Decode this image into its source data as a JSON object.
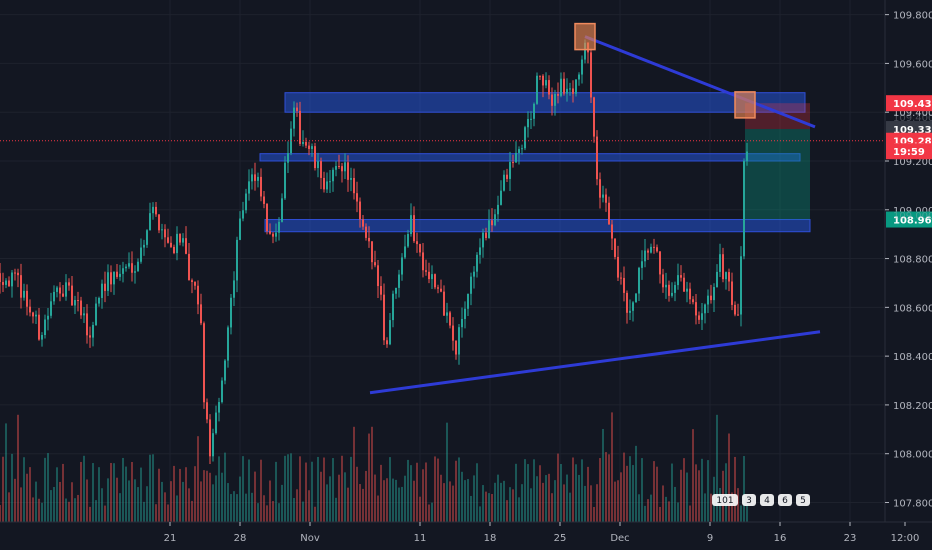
{
  "chart_data": {
    "type": "candlestick",
    "y_range": [
      107.72,
      109.86
    ],
    "y_ticks": [
      {
        "value": 109.8,
        "label": "109.800"
      },
      {
        "value": 109.6,
        "label": "109.600"
      },
      {
        "value": 109.4,
        "label": "109.400"
      },
      {
        "value": 109.2,
        "label": "109.200"
      },
      {
        "value": 109.0,
        "label": "109.000"
      },
      {
        "value": 108.8,
        "label": "108.800"
      },
      {
        "value": 108.6,
        "label": "108.600"
      },
      {
        "value": 108.4,
        "label": "108.400"
      },
      {
        "value": 108.2,
        "label": "108.200"
      },
      {
        "value": 108.0,
        "label": "108.000"
      },
      {
        "value": 107.8,
        "label": "107.800"
      }
    ],
    "x_range": [
      0,
      885
    ],
    "x_ticks": [
      {
        "x": 17,
        "label": "21"
      },
      {
        "x": 24,
        "label": "28"
      },
      {
        "x": 31,
        "label": "Nov"
      },
      {
        "x": 42,
        "label": "11"
      },
      {
        "x": 49,
        "label": "18"
      },
      {
        "x": 56,
        "label": "25"
      },
      {
        "x": 62,
        "label": "Dec"
      },
      {
        "x": 71,
        "label": "9"
      },
      {
        "x": 78,
        "label": "16"
      },
      {
        "x": 85,
        "label": "23"
      },
      {
        "x": 90.5,
        "label": "12:00"
      }
    ],
    "price_tags": [
      {
        "value": 109.437,
        "label": "109.437",
        "color": "#f23645"
      },
      {
        "value": 109.331,
        "label": "109.331",
        "color": "#363a45"
      },
      {
        "value": 109.283,
        "label": "109.283",
        "color": "#f23645"
      },
      {
        "value": 109.24,
        "label": "19:59",
        "color": "#f23645"
      },
      {
        "value": 108.96,
        "label": "108.960",
        "color": "#089981"
      }
    ],
    "hidden_tick_fragments": [
      "109.400",
      "109.000"
    ],
    "current_price": 109.283,
    "zones": [
      {
        "x_start": 28.5,
        "x_end": 80.5,
        "y_low": 109.4,
        "y_high": 109.48
      },
      {
        "x_start": 26,
        "x_end": 80,
        "y_low": 109.2,
        "y_high": 109.23
      },
      {
        "x_start": 26.5,
        "x_end": 81,
        "y_low": 108.91,
        "y_high": 108.96
      }
    ],
    "trendlines": [
      {
        "x1": 58.5,
        "y1": 109.71,
        "x2": 81.5,
        "y2": 109.34
      },
      {
        "x1": 37,
        "y1": 108.25,
        "x2": 82,
        "y2": 108.5
      }
    ],
    "markers": [
      {
        "x": 58.5,
        "y": 109.71
      },
      {
        "x": 74.5,
        "y": 109.43
      }
    ],
    "position": {
      "x_start": 74.5,
      "x_end": 81,
      "entry": 109.331,
      "stop": 109.437,
      "target": 108.96
    },
    "candle_seed": [
      [
        0,
        108.74
      ],
      [
        2,
        108.69
      ],
      [
        4,
        108.49
      ],
      [
        6,
        108.7
      ],
      [
        8,
        108.58
      ],
      [
        9,
        108.48
      ],
      [
        10,
        108.69
      ],
      [
        12,
        108.74
      ],
      [
        14,
        108.81
      ],
      [
        15,
        109.0
      ],
      [
        16,
        108.95
      ],
      [
        17,
        108.84
      ],
      [
        18,
        108.9
      ],
      [
        19,
        108.7
      ],
      [
        20,
        108.6
      ],
      [
        20.5,
        108.15
      ],
      [
        21,
        108.02
      ],
      [
        22,
        108.2
      ],
      [
        23,
        108.6
      ],
      [
        24,
        108.98
      ],
      [
        25,
        109.14
      ],
      [
        26,
        109.08
      ],
      [
        27,
        108.86
      ],
      [
        28,
        109.0
      ],
      [
        28.8,
        109.25
      ],
      [
        29.5,
        109.4
      ],
      [
        30,
        109.31
      ],
      [
        31,
        109.24
      ],
      [
        32,
        109.14
      ],
      [
        33,
        109.09
      ],
      [
        34,
        109.21
      ],
      [
        35,
        109.13
      ],
      [
        36,
        108.94
      ],
      [
        37,
        108.82
      ],
      [
        38,
        108.71
      ],
      [
        38.5,
        108.42
      ],
      [
        39,
        108.56
      ],
      [
        40,
        108.8
      ],
      [
        41,
        108.96
      ],
      [
        42,
        108.82
      ],
      [
        43,
        108.74
      ],
      [
        44,
        108.64
      ],
      [
        45,
        108.53
      ],
      [
        45.5,
        108.38
      ],
      [
        46,
        108.52
      ],
      [
        47,
        108.7
      ],
      [
        48,
        108.86
      ],
      [
        49,
        108.92
      ],
      [
        50,
        109.07
      ],
      [
        51,
        109.17
      ],
      [
        52,
        109.25
      ],
      [
        53,
        109.38
      ],
      [
        54,
        109.56
      ],
      [
        55,
        109.44
      ],
      [
        56,
        109.52
      ],
      [
        57,
        109.47
      ],
      [
        58,
        109.58
      ],
      [
        58.5,
        109.66
      ],
      [
        59,
        109.57
      ],
      [
        59.5,
        109.22
      ],
      [
        60,
        109.01
      ],
      [
        60.5,
        109.05
      ],
      [
        61,
        108.95
      ],
      [
        62,
        108.7
      ],
      [
        63,
        108.55
      ],
      [
        64,
        108.74
      ],
      [
        65,
        108.85
      ],
      [
        66,
        108.76
      ],
      [
        67,
        108.6
      ],
      [
        68,
        108.72
      ],
      [
        69,
        108.62
      ],
      [
        70,
        108.52
      ],
      [
        71,
        108.64
      ],
      [
        72,
        108.78
      ],
      [
        73,
        108.7
      ],
      [
        73.5,
        108.53
      ],
      [
        74,
        108.62
      ],
      [
        74.4,
        109.2
      ],
      [
        74.8,
        109.3
      ]
    ],
    "volume_panel": {
      "badges": [
        "101",
        "3",
        "4",
        "6",
        "5"
      ]
    }
  }
}
